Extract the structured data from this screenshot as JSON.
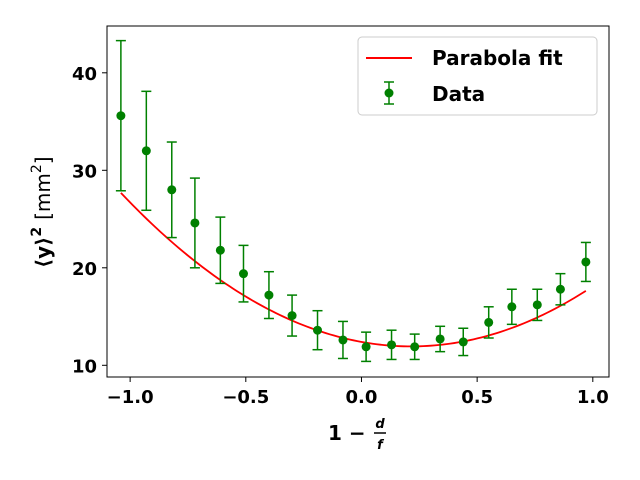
{
  "chart_data": {
    "type": "scatter",
    "xlim": [
      -1.1,
      1.07
    ],
    "ylim": [
      8.8,
      44.8
    ],
    "x_ticks": [
      -1.0,
      -0.5,
      0.0,
      0.5,
      1.0
    ],
    "x_tick_labels": [
      "−1.0",
      "−0.5",
      "0.0",
      "0.5",
      "1.0"
    ],
    "y_ticks": [
      10,
      20,
      30,
      40
    ],
    "y_tick_labels": [
      "10",
      "20",
      "30",
      "40"
    ],
    "grid": false,
    "legend_position": "top-right",
    "xlabel": {
      "main": "1 − ",
      "num": "d",
      "den": "f"
    },
    "ylabel": {
      "main": "⟨y⟩",
      "sup": "2",
      "unit": "[mm",
      "unit_sup": "2",
      "unit_close": "]"
    },
    "colors": {
      "fit": "#ff0000",
      "data": "#008000"
    },
    "series": [
      {
        "name": "Parabola fit",
        "kind": "curve",
        "coefficients": {
          "a": 10.0,
          "b": -4.3,
          "c": 12.4
        },
        "x_range": [
          -1.04,
          0.97
        ]
      },
      {
        "name": "Data",
        "kind": "errorbar",
        "points": [
          {
            "x": -1.04,
            "y": 35.6,
            "yerr": 7.7
          },
          {
            "x": -0.93,
            "y": 32.0,
            "yerr": 6.1
          },
          {
            "x": -0.82,
            "y": 28.0,
            "yerr": 4.9
          },
          {
            "x": -0.72,
            "y": 24.6,
            "yerr": 4.6
          },
          {
            "x": -0.61,
            "y": 21.8,
            "yerr": 3.4
          },
          {
            "x": -0.51,
            "y": 19.4,
            "yerr": 2.9
          },
          {
            "x": -0.4,
            "y": 17.2,
            "yerr": 2.4
          },
          {
            "x": -0.3,
            "y": 15.1,
            "yerr": 2.1
          },
          {
            "x": -0.19,
            "y": 13.6,
            "yerr": 2.0
          },
          {
            "x": -0.08,
            "y": 12.6,
            "yerr": 1.9
          },
          {
            "x": 0.02,
            "y": 11.9,
            "yerr": 1.5
          },
          {
            "x": 0.13,
            "y": 12.1,
            "yerr": 1.5
          },
          {
            "x": 0.23,
            "y": 11.9,
            "yerr": 1.3
          },
          {
            "x": 0.34,
            "y": 12.7,
            "yerr": 1.3
          },
          {
            "x": 0.44,
            "y": 12.4,
            "yerr": 1.4
          },
          {
            "x": 0.55,
            "y": 14.4,
            "yerr": 1.6
          },
          {
            "x": 0.65,
            "y": 16.0,
            "yerr": 1.8
          },
          {
            "x": 0.76,
            "y": 16.2,
            "yerr": 1.6
          },
          {
            "x": 0.86,
            "y": 17.8,
            "yerr": 1.6
          },
          {
            "x": 0.97,
            "y": 20.6,
            "yerr": 2.0
          }
        ]
      }
    ]
  }
}
